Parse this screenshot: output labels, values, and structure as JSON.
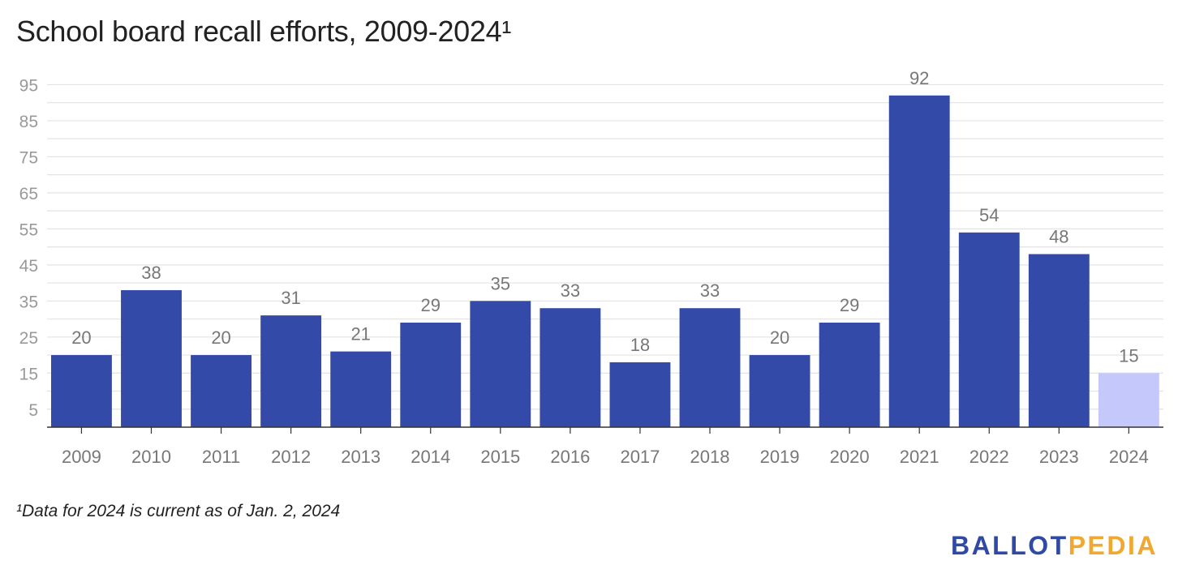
{
  "chart_data": {
    "type": "bar",
    "title": "School board recall efforts, 2009-2024¹",
    "categories": [
      "2009",
      "2010",
      "2011",
      "2012",
      "2013",
      "2014",
      "2015",
      "2016",
      "2017",
      "2018",
      "2019",
      "2020",
      "2021",
      "2022",
      "2023",
      "2024"
    ],
    "values": [
      20,
      38,
      20,
      31,
      21,
      29,
      35,
      33,
      18,
      33,
      20,
      29,
      92,
      54,
      48,
      15
    ],
    "yticks": [
      5,
      15,
      25,
      35,
      45,
      55,
      65,
      75,
      85,
      95
    ],
    "ylim": [
      0,
      100
    ],
    "grid": true,
    "legend": "none",
    "colors": {
      "bar": "#334aa8",
      "highlight_bar": "#c5c8fb",
      "grid": "#e3e3e3",
      "axis": "#333333",
      "label": "#777777",
      "tick": "#999999"
    },
    "highlight_categories": [
      "2024"
    ]
  },
  "footnote": "¹Data for 2024 is current as of Jan. 2, 2024",
  "logo": {
    "part1": "BALLOT",
    "part2": "PEDIA"
  }
}
